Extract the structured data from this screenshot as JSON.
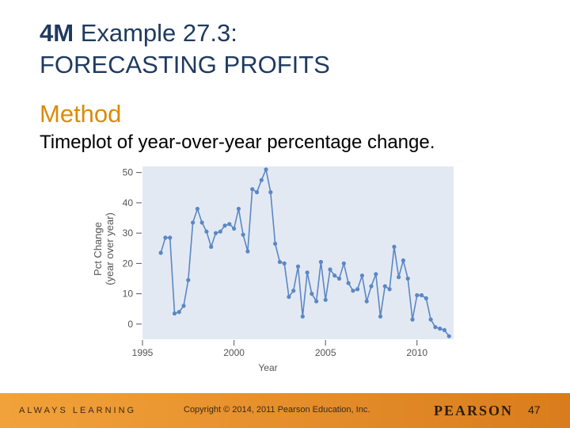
{
  "slide": {
    "title_bold": "4M",
    "title_rest": " Example 27.3:",
    "title_line2": "FORECASTING PROFITS",
    "heading": "Method",
    "text": "Timeplot of year-over-year percentage change."
  },
  "footer": {
    "tagline": "ALWAYS LEARNING",
    "copyright": "Copyright © 2014, 2011 Pearson Education, Inc.",
    "brand": "PEARSON",
    "page": "47",
    "colors": {
      "start": "#f2a23a",
      "end": "#d97c1d"
    }
  },
  "colors": {
    "title": "#1f3a5f",
    "heading": "#d98b0b",
    "plot_bg": "#e3e9f2",
    "series": "#5b87c5"
  },
  "chart_data": {
    "type": "line",
    "xlabel": "Year",
    "ylabel": "Pct Change\n(year over year)",
    "xlim": [
      1995,
      2012
    ],
    "ylim": [
      -5,
      52
    ],
    "x_ticks": [
      1995,
      2000,
      2005,
      2010
    ],
    "y_ticks": [
      0,
      10,
      20,
      30,
      40,
      50
    ],
    "grid": false,
    "series": [
      {
        "x": [
          1996.0,
          1996.25,
          1996.5,
          1996.75,
          1997.0,
          1997.25,
          1997.5,
          1997.75,
          1998.0,
          1998.25,
          1998.5,
          1998.75,
          1999.0,
          1999.25,
          1999.5,
          1999.75,
          2000.0,
          2000.25,
          2000.5,
          2000.75,
          2001.0,
          2001.25,
          2001.5,
          2001.75,
          2002.0,
          2002.25,
          2002.5,
          2002.75,
          2003.0,
          2003.25,
          2003.5,
          2003.75,
          2004.0,
          2004.25,
          2004.5,
          2004.75,
          2005.0,
          2005.25,
          2005.5,
          2005.75,
          2006.0,
          2006.25,
          2006.5,
          2006.75,
          2007.0,
          2007.25,
          2007.5,
          2007.75,
          2008.0,
          2008.25,
          2008.5,
          2008.75,
          2009.0,
          2009.25,
          2009.5,
          2009.75,
          2010.0,
          2010.25,
          2010.5,
          2010.75,
          2011.0,
          2011.25,
          2011.5,
          2011.75
        ],
        "y": [
          23.5,
          28.5,
          28.5,
          3.5,
          4,
          6,
          14.5,
          33.5,
          38,
          33.5,
          30.5,
          25.5,
          30,
          30.5,
          32.5,
          33,
          31.5,
          38,
          29.5,
          24,
          44.5,
          43.5,
          47.5,
          51,
          43.5,
          26.5,
          20.5,
          20,
          9,
          11,
          19,
          2.5,
          17,
          10,
          7.5,
          20.5,
          8,
          18,
          16,
          15,
          20,
          13.5,
          11,
          11.5,
          16,
          7.5,
          12.5,
          16.5,
          2.5,
          12.5,
          11.5,
          25.5,
          15.5,
          21,
          15,
          1.5,
          9.5,
          9.5,
          8.5,
          1.5,
          -1,
          -1.5,
          -2,
          -4
        ]
      }
    ]
  }
}
